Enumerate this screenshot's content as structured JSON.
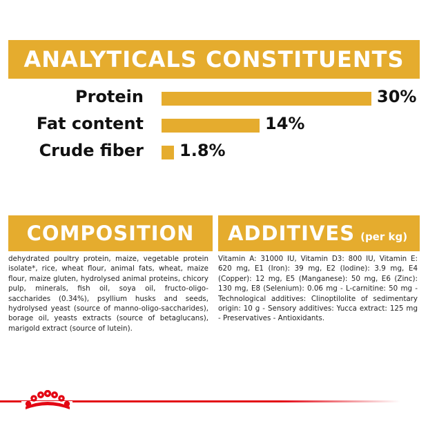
{
  "analytics": {
    "title": "ANALYTICALS CONSTITUENTS",
    "rows": [
      {
        "label": "Protein",
        "value_text": "30%",
        "value": 30
      },
      {
        "label": "Fat content",
        "value_text": "14%",
        "value": 14
      },
      {
        "label": "Crude fiber",
        "value_text": "1.8%",
        "value": 1.8
      }
    ]
  },
  "composition": {
    "title": "COMPOSITION",
    "text": "dehydrated poultry protein, maize, vegetable protein isolate*, rice, wheat flour, animal fats, wheat, maize flour, maize gluten, hydrolysed animal proteins, chicory pulp, minerals, fish oil, soya oil, fructo-oligo-saccharides (0.34%), psyllium husks and seeds, hydrolysed yeast (source of manno-oligo-saccharides), borage oil, yeasts extracts (source of betaglucans), marigold extract (source of lutein)."
  },
  "additives": {
    "title": "ADDITIVES",
    "subtitle": "(per kg)",
    "text": "Vitamin A: 31000 IU, Vitamin D3: 800 IU, Vitamin E: 620 mg, E1 (Iron): 39 mg, E2 (Iodine): 3.9 mg, E4 (Copper): 12 mg, E5 (Manganese): 50 mg, E6 (Zinc): 130 mg, E8 (Selenium): 0.06 mg - L-carnitine: 50 mg - Technological additives: Clinoptilolite of sedimentary origin: 10 g - Sensory additives: Yucca extract: 125 mg - Preservatives - Antioxidants."
  },
  "colors": {
    "accent": "#e5ac2e",
    "brand_red": "#e30613",
    "banner_text": "#ffffff"
  },
  "footer": {
    "logo_icon": "royal-crown-logo-icon"
  }
}
